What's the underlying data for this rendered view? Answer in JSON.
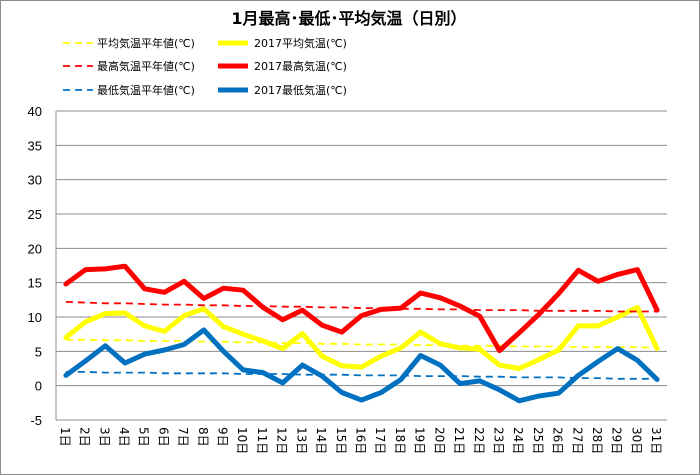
{
  "chart_data": {
    "type": "line",
    "title": "1月最高･最低･平均気温（日別）",
    "ylim": [
      -5,
      40
    ],
    "yticks": [
      40,
      35,
      30,
      25,
      20,
      15,
      10,
      5,
      0,
      -5
    ],
    "grid": true,
    "legend_position": "top",
    "categories": [
      "1日",
      "2日",
      "3日",
      "4日",
      "5日",
      "6日",
      "7日",
      "8日",
      "9日",
      "10日",
      "11日",
      "12日",
      "13日",
      "14日",
      "15日",
      "16日",
      "17日",
      "18日",
      "19日",
      "20日",
      "21日",
      "22日",
      "23日",
      "24日",
      "25日",
      "26日",
      "27日",
      "28日",
      "29日",
      "30日",
      "31日"
    ],
    "series": [
      {
        "name": "平均気温平年値(℃)",
        "color": "#ffff00",
        "style": "dashed",
        "values": [
          6.7,
          6.7,
          6.6,
          6.6,
          6.5,
          6.5,
          6.5,
          6.4,
          6.4,
          6.3,
          6.3,
          6.2,
          6.2,
          6.1,
          6.1,
          6.0,
          6.0,
          6.0,
          5.9,
          5.9,
          5.8,
          5.8,
          5.8,
          5.7,
          5.7,
          5.7,
          5.6,
          5.6,
          5.6,
          5.6,
          5.5
        ]
      },
      {
        "name": "2017平均気温(℃)",
        "color": "#ffff00",
        "style": "solid",
        "values": [
          7.0,
          9.3,
          10.5,
          10.6,
          8.7,
          7.9,
          10.2,
          11.2,
          8.6,
          7.5,
          6.5,
          5.4,
          7.6,
          4.3,
          2.9,
          2.7,
          4.3,
          5.5,
          7.8,
          6.1,
          5.5,
          5.3,
          3.0,
          2.5,
          3.8,
          5.2,
          8.7,
          8.7,
          10.0,
          11.4,
          5.4
        ]
      },
      {
        "name": "最高気温平年値(℃)",
        "color": "#ff0000",
        "style": "dashed",
        "values": [
          12.2,
          12.1,
          12.0,
          12.0,
          11.9,
          11.8,
          11.8,
          11.7,
          11.7,
          11.6,
          11.6,
          11.5,
          11.5,
          11.4,
          11.4,
          11.3,
          11.3,
          11.2,
          11.2,
          11.1,
          11.1,
          11.0,
          11.0,
          11.0,
          10.9,
          10.9,
          10.9,
          10.9,
          10.8,
          10.8,
          10.8
        ]
      },
      {
        "name": "2017最高気温(℃)",
        "color": "#ff0000",
        "style": "solid",
        "values": [
          14.8,
          16.9,
          17.0,
          17.4,
          14.1,
          13.6,
          15.2,
          12.7,
          14.2,
          13.9,
          11.4,
          9.6,
          11.0,
          8.8,
          7.8,
          10.2,
          11.1,
          11.3,
          13.5,
          12.8,
          11.6,
          10.1,
          5.1,
          7.7,
          10.4,
          13.4,
          16.8,
          15.2,
          16.2,
          16.9,
          11.0
        ]
      },
      {
        "name": "最低気温平年値(℃)",
        "color": "#0070c0",
        "style": "dashed",
        "values": [
          2.0,
          2.0,
          1.9,
          1.9,
          1.9,
          1.8,
          1.8,
          1.8,
          1.8,
          1.7,
          1.7,
          1.7,
          1.6,
          1.6,
          1.6,
          1.5,
          1.5,
          1.5,
          1.4,
          1.4,
          1.4,
          1.3,
          1.3,
          1.2,
          1.2,
          1.2,
          1.1,
          1.1,
          1.0,
          1.0,
          1.0
        ]
      },
      {
        "name": "2017最低気温(℃)",
        "color": "#0070c0",
        "style": "solid",
        "values": [
          1.5,
          3.6,
          5.8,
          3.3,
          4.6,
          5.2,
          6.0,
          8.1,
          5.0,
          2.3,
          1.9,
          0.4,
          3.0,
          1.4,
          -1.0,
          -2.1,
          -1.0,
          0.9,
          4.4,
          3.0,
          0.3,
          0.7,
          -0.6,
          -2.2,
          -1.5,
          -1.1,
          1.5,
          3.5,
          5.4,
          3.7,
          0.9
        ]
      }
    ]
  }
}
